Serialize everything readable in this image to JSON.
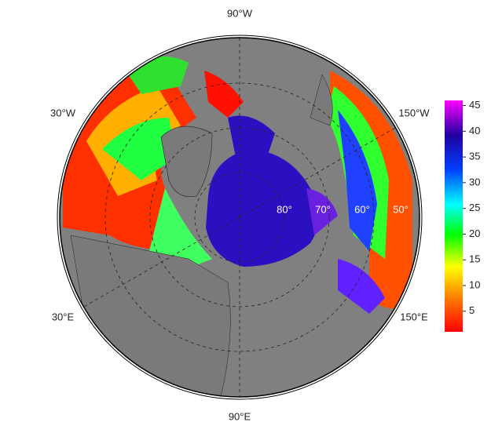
{
  "map": {
    "lon_labels": [
      "90°W",
      "30°W",
      "150°W",
      "30°E",
      "150°E",
      "90°E"
    ],
    "lat_labels": [
      "80°",
      "70°",
      "60°",
      "50°"
    ],
    "colorbar": {
      "lim": [
        1,
        46
      ],
      "ticks": [
        5,
        10,
        15,
        20,
        25,
        30,
        35,
        40,
        45
      ]
    }
  }
}
